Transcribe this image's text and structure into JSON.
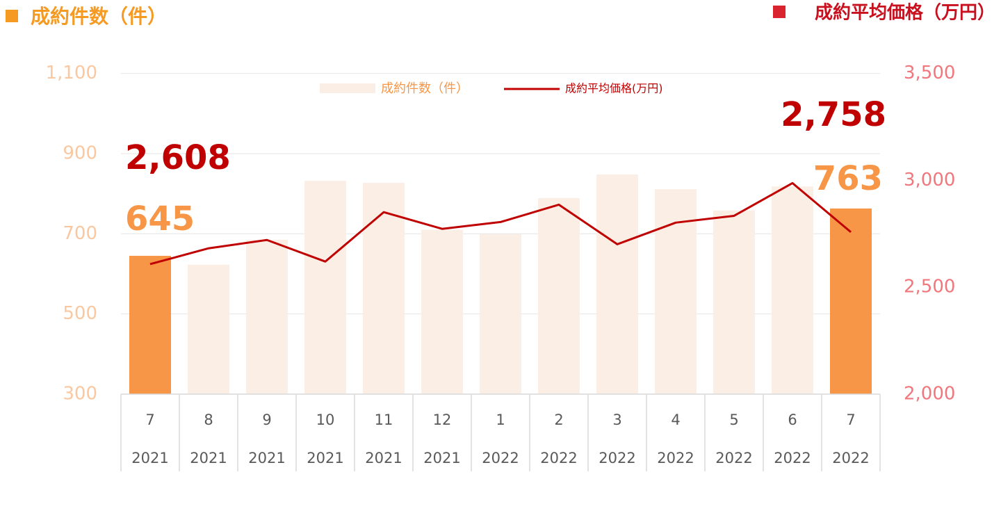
{
  "chart_data": {
    "type": "bar-line",
    "y_title": "成約件数（件）",
    "y2_title": "成約平均価格（万円）",
    "categories": [
      "7",
      "8",
      "9",
      "10",
      "11",
      "12",
      "1",
      "2",
      "3",
      "4",
      "5",
      "6",
      "7"
    ],
    "years": [
      "2021",
      "2021",
      "2021",
      "2021",
      "2021",
      "2021",
      "2022",
      "2022",
      "2022",
      "2022",
      "2022",
      "2022",
      "2022"
    ],
    "series": [
      {
        "name": "成約件数（件）",
        "type": "bar",
        "color": "#fbeee5",
        "colors": [
          "#f79646",
          "#fbeee5",
          "#fbeee5",
          "#fbeee5",
          "#fbeee5",
          "#fbeee5",
          "#fbeee5",
          "#fbeee5",
          "#fbeee5",
          "#fbeee5",
          "#fbeee5",
          "#fbeee5",
          "#f79646"
        ],
        "values": [
          645,
          623,
          685,
          832,
          827,
          710,
          699,
          789,
          848,
          811,
          758,
          818,
          763
        ],
        "value_labels": [
          "645",
          null,
          null,
          null,
          null,
          null,
          null,
          null,
          null,
          null,
          null,
          null,
          "763"
        ]
      },
      {
        "name": "成約平均価格(万円)",
        "type": "line",
        "axis": "y2",
        "color": "#c00000",
        "values": [
          2608,
          2682,
          2721,
          2620,
          2851,
          2773,
          2805,
          2886,
          2701,
          2802,
          2834,
          2987,
          2758
        ],
        "value_labels": [
          "2,608",
          null,
          null,
          null,
          null,
          null,
          null,
          null,
          null,
          null,
          null,
          null,
          "2,758"
        ]
      }
    ],
    "ylim": [
      300,
      1100
    ],
    "yticks": [
      300,
      500,
      700,
      900,
      {
        "value": 1100,
        "label": "1,100"
      }
    ],
    "y2lim": [
      2000,
      3500
    ],
    "y2ticks": [
      {
        "value": 2000,
        "label": "2,000"
      },
      {
        "value": 2500,
        "label": "2,500"
      },
      {
        "value": 3000,
        "label": "3,000"
      },
      {
        "value": 3500,
        "label": "3,500"
      }
    ],
    "grid": true
  }
}
